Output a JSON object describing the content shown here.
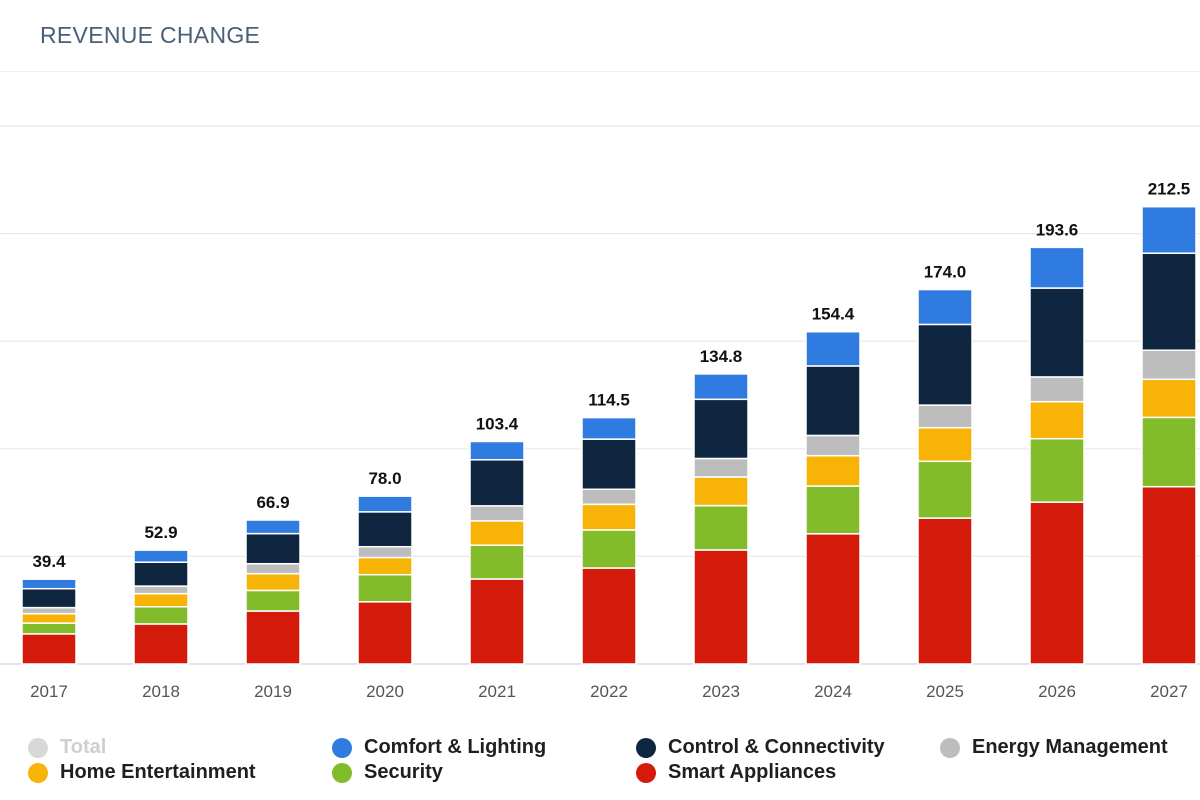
{
  "header": {
    "title": "REVENUE CHANGE"
  },
  "chart_data": {
    "type": "bar",
    "stacked": true,
    "categories": [
      "2017",
      "2018",
      "2019",
      "2020",
      "2021",
      "2022",
      "2023",
      "2024",
      "2025",
      "2026",
      "2027"
    ],
    "totals": [
      39.4,
      52.9,
      66.9,
      78.0,
      103.4,
      114.5,
      134.8,
      154.4,
      174.0,
      193.6,
      212.5
    ],
    "total_labels": [
      "39.4",
      "52.9",
      "66.9",
      "78.0",
      "103.4",
      "114.5",
      "134.8",
      "154.4",
      "174.0",
      "193.6",
      "212.5"
    ],
    "ylim": [
      0,
      250
    ],
    "y_gridlines": [
      0,
      50,
      100,
      150,
      200,
      250
    ],
    "grid": true,
    "legend_position": "bottom",
    "series": [
      {
        "name": "Smart Appliances",
        "color": "#d41a0a",
        "values": [
          14.0,
          18.6,
          24.6,
          28.9,
          39.5,
          44.6,
          53.0,
          60.5,
          67.8,
          75.2,
          82.4
        ]
      },
      {
        "name": "Security",
        "color": "#82bc2a",
        "values": [
          5.0,
          8.0,
          9.6,
          12.6,
          15.7,
          17.7,
          20.6,
          22.2,
          26.4,
          29.5,
          32.2
        ]
      },
      {
        "name": "Home Entertainment",
        "color": "#f7b407",
        "values": [
          4.4,
          6.1,
          7.8,
          8.0,
          11.3,
          11.9,
          13.3,
          14.1,
          15.6,
          17.2,
          17.7
        ]
      },
      {
        "name": "Energy Management",
        "color": "#bdbdbd",
        "values": [
          2.8,
          3.5,
          4.6,
          5.0,
          7.0,
          7.0,
          8.6,
          9.4,
          10.5,
          11.5,
          13.5
        ]
      },
      {
        "name": "Control & Connectivity",
        "color": "#0f2640",
        "values": [
          8.8,
          11.1,
          14.0,
          16.2,
          21.4,
          23.3,
          27.5,
          32.3,
          37.5,
          41.3,
          45.1
        ]
      },
      {
        "name": "Comfort & Lighting",
        "color": "#2f7be0",
        "values": [
          4.4,
          5.6,
          6.3,
          7.3,
          8.5,
          10.0,
          11.8,
          15.9,
          16.2,
          18.9,
          21.6
        ]
      }
    ]
  },
  "legend": [
    {
      "label": "Total",
      "color": "#d8d8d8",
      "disabled": true
    },
    {
      "label": "Comfort & Lighting",
      "color": "#2f7be0",
      "disabled": false
    },
    {
      "label": "Control & Connectivity",
      "color": "#0f2640",
      "disabled": false
    },
    {
      "label": "Energy Management",
      "color": "#bdbdbd",
      "disabled": false
    },
    {
      "label": "Home Entertainment",
      "color": "#f7b407",
      "disabled": false
    },
    {
      "label": "Security",
      "color": "#82bc2a",
      "disabled": false
    },
    {
      "label": "Smart Appliances",
      "color": "#d41a0a",
      "disabled": false
    }
  ]
}
